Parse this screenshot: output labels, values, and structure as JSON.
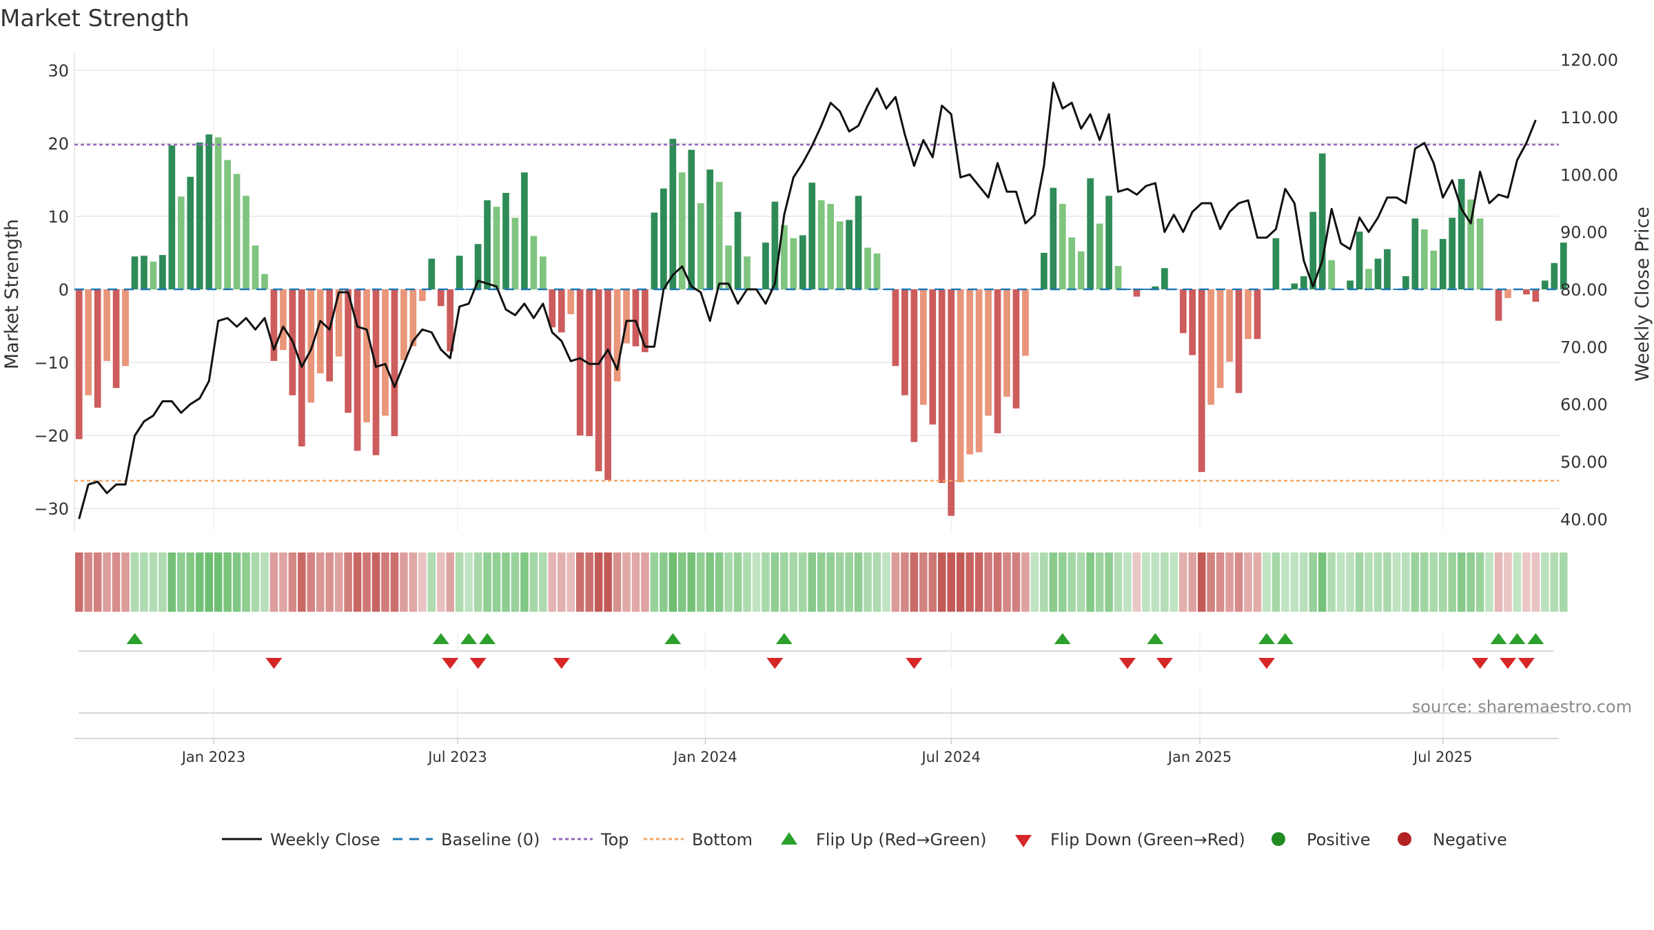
{
  "chart_data": {
    "type": "bar",
    "title": "Market Strength",
    "source": "source: sharemaestro.com",
    "ylabel_left": "Market Strength",
    "ylabel_right": "Weekly Close Price",
    "ylim_left": [
      -33,
      33
    ],
    "ylim_right": [
      38,
      122
    ],
    "yticks_left": [
      30,
      20,
      10,
      0,
      -10,
      -20,
      -30
    ],
    "yticks_left_labels": [
      "30",
      "20",
      "10",
      "0",
      "−10",
      "−20",
      "−30"
    ],
    "yticks_right": [
      120,
      110,
      100,
      90,
      80,
      70,
      60,
      50,
      40
    ],
    "yticks_right_labels": [
      "120.00",
      "110.00",
      "100.00",
      "90.00",
      "80.00",
      "70.00",
      "60.00",
      "50.00",
      "40.00"
    ],
    "top_line": 19.8,
    "bottom_line": -26.2,
    "x_range_weeks": [
      0,
      160
    ],
    "x_ticks": [
      {
        "label": "Jan 2023",
        "week": 15
      },
      {
        "label": "Jul 2023",
        "week": 41.3
      },
      {
        "label": "Jan 2024",
        "week": 68
      },
      {
        "label": "Jul 2024",
        "week": 94.5
      },
      {
        "label": "Jan 2025",
        "week": 121.3
      },
      {
        "label": "Jul 2025",
        "week": 147.5
      }
    ],
    "strength": [
      -20.5,
      -14.5,
      -16.2,
      -9.8,
      -13.5,
      -10.5,
      4.5,
      4.6,
      3.8,
      4.7,
      19.7,
      12.7,
      15.4,
      20.1,
      21.2,
      20.8,
      17.7,
      15.8,
      12.8,
      6.0,
      2.1,
      -9.8,
      -8.3,
      -14.5,
      -21.5,
      -15.5,
      -11.5,
      -12.6,
      -9.2,
      -16.9,
      -22.1,
      -18.2,
      -22.7,
      -17.3,
      -20.1,
      -9.7,
      -7.8,
      -1.6,
      4.2,
      -2.3,
      -8.5,
      4.6,
      0,
      6.2,
      12.2,
      11.3,
      13.2,
      9.8,
      16.0,
      7.3,
      4.5,
      -5.2,
      -5.9,
      -3.4,
      -20.0,
      -20.1,
      -24.9,
      -26.1,
      -12.6,
      -7.4,
      -7.8,
      -8.6,
      10.5,
      13.8,
      20.6,
      16.0,
      19.1,
      11.8,
      16.4,
      14.7,
      6.0,
      10.6,
      4.5,
      0,
      6.4,
      12.0,
      8.8,
      7.0,
      7.4,
      14.6,
      12.2,
      11.7,
      9.3,
      9.5,
      12.8,
      5.7,
      4.9,
      0,
      -10.5,
      -14.5,
      -20.9,
      -15.8,
      -18.5,
      -26.5,
      -31.0,
      -26.4,
      -22.6,
      -22.3,
      -17.3,
      -19.7,
      -14.7,
      -16.3,
      -9.1,
      0,
      5.0,
      13.9,
      11.7,
      7.1,
      5.2,
      15.2,
      9.0,
      12.8,
      3.2,
      0,
      -1.0,
      0,
      0.4,
      2.9,
      0,
      -6.0,
      -9.0,
      -25.0,
      -15.8,
      -13.5,
      -9.9,
      -14.2,
      -6.8,
      -6.8,
      0,
      7.0,
      0,
      0.8,
      1.8,
      10.6,
      18.6,
      4.0,
      0,
      1.2,
      7.9,
      2.8,
      4.2,
      5.5,
      0,
      1.8,
      9.7,
      8.2,
      5.3,
      6.9,
      9.8,
      15.1,
      12.3,
      9.7,
      0,
      -4.3,
      -1.2,
      0,
      -0.7,
      -1.7,
      1.2,
      3.6,
      6.4
    ],
    "weekly_close": [
      40.0,
      46.0,
      46.5,
      44.5,
      46.0,
      46.0,
      54.5,
      57.0,
      58.0,
      60.5,
      60.5,
      58.5,
      60.0,
      61.0,
      64.0,
      74.5,
      75.0,
      73.5,
      75.0,
      73.0,
      75.0,
      69.5,
      73.5,
      71.0,
      66.5,
      69.5,
      74.5,
      73.0,
      79.5,
      79.5,
      73.5,
      73.0,
      66.5,
      67.0,
      63.0,
      67.0,
      71.0,
      73.0,
      72.5,
      69.5,
      68.0,
      77.0,
      77.5,
      81.5,
      81.0,
      80.5,
      76.5,
      75.5,
      77.5,
      75.0,
      77.5,
      72.5,
      71.0,
      67.5,
      68.0,
      67.0,
      67.0,
      69.5,
      66.0,
      74.5,
      74.5,
      70.0,
      70.0,
      80.0,
      82.5,
      84.0,
      80.5,
      79.5,
      74.5,
      81.0,
      81.0,
      77.5,
      80.0,
      80.0,
      77.5,
      81.0,
      93.0,
      99.5,
      102.0,
      105.0,
      108.5,
      112.5,
      111.0,
      107.5,
      108.5,
      112.0,
      115.0,
      111.5,
      113.5,
      107.0,
      101.5,
      106.0,
      103.0,
      112.0,
      110.5,
      99.5,
      100.0,
      98.0,
      96.0,
      102.0,
      97.0,
      97.0,
      91.5,
      93.0,
      101.5,
      116.0,
      111.5,
      112.5,
      108.0,
      110.5,
      106.0,
      110.5,
      97.0,
      97.5,
      96.5,
      98.0,
      98.5,
      90.0,
      93.0,
      90.0,
      93.5,
      95.0,
      95.0,
      90.5,
      93.5,
      95.0,
      95.5,
      89.0,
      89.0,
      90.5,
      97.5,
      95.0,
      85.0,
      80.5,
      85.0,
      94.0,
      88.0,
      87.0,
      92.5,
      90.0,
      92.5,
      96.0,
      96.0,
      95.0,
      104.5,
      105.5,
      102.0,
      96.0,
      99.0,
      94.0,
      91.5,
      100.5,
      95.0,
      96.5,
      96.0,
      102.5,
      105.5,
      109.5
    ],
    "flip_up_weeks": [
      6,
      39,
      42,
      44,
      64,
      76,
      106,
      116,
      128,
      130,
      153,
      155,
      157
    ],
    "flip_down_weeks": [
      21,
      40,
      43,
      52,
      75,
      90,
      113,
      117,
      128,
      151,
      154,
      156
    ],
    "legend": [
      "Weekly Close",
      "Baseline (0)",
      "Top",
      "Bottom",
      "Flip Up (Red→Green)",
      "Flip Down (Green→Red)",
      "Positive",
      "Negative"
    ],
    "colors": {
      "pos_strong": "#2e8b57",
      "pos_light": "#7fc47f",
      "neg_strong": "#cd5c5c",
      "neg_light": "#e9967a",
      "line": "#111111",
      "baseline": "#1f77b4",
      "top": "#9467bd",
      "bottom": "#f4a460",
      "flip_up": "#2ca02c",
      "flip_down": "#d62728",
      "positive_dot": "#228b22",
      "negative_dot": "#b22222",
      "grid": "#e6e6e6",
      "axis": "#cccccc"
    }
  }
}
